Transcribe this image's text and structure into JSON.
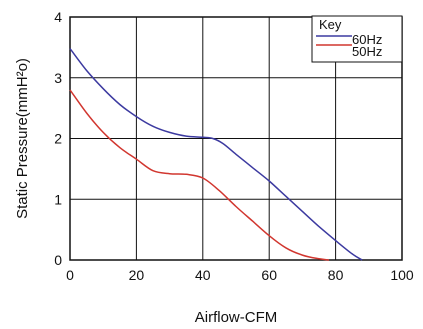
{
  "chart_data": {
    "type": "line",
    "xlabel": "Airflow-CFM",
    "ylabel": "Static Pressure(mmH²o)",
    "xlim": [
      0,
      100
    ],
    "ylim": [
      0,
      4
    ],
    "xticks": [
      0,
      20,
      40,
      60,
      80,
      100
    ],
    "yticks": [
      0,
      1,
      2,
      3,
      4
    ],
    "grid": true,
    "legend": {
      "title": "Key",
      "placement": "top-right"
    },
    "series": [
      {
        "name": "60Hz",
        "color": "#3c3aa0",
        "x": [
          0,
          5,
          10,
          15,
          20,
          25,
          30,
          35,
          40,
          43,
          46,
          50,
          55,
          60,
          65,
          70,
          75,
          80,
          85,
          88
        ],
        "y": [
          3.48,
          3.12,
          2.82,
          2.56,
          2.36,
          2.2,
          2.1,
          2.04,
          2.02,
          2.0,
          1.92,
          1.74,
          1.52,
          1.3,
          1.05,
          0.8,
          0.55,
          0.32,
          0.1,
          0.0
        ]
      },
      {
        "name": "50Hz",
        "color": "#d1362f",
        "x": [
          0,
          5,
          10,
          15,
          20,
          25,
          30,
          35,
          40,
          45,
          50,
          55,
          60,
          65,
          70,
          75,
          78
        ],
        "y": [
          2.8,
          2.42,
          2.1,
          1.85,
          1.66,
          1.47,
          1.42,
          1.41,
          1.35,
          1.14,
          0.88,
          0.64,
          0.4,
          0.2,
          0.08,
          0.02,
          0.0
        ]
      }
    ]
  }
}
